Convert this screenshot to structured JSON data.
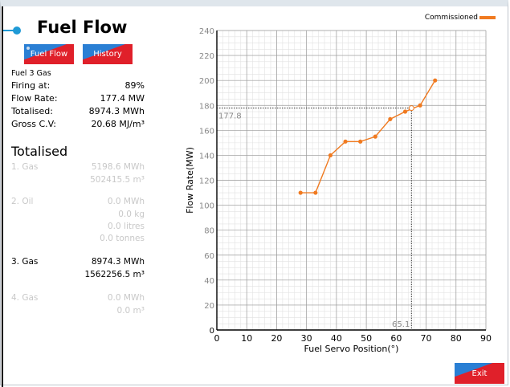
{
  "page": {
    "title": "Fuel Flow"
  },
  "buttons": {
    "fuel_flow": "Fuel Flow",
    "history": "History",
    "exit": "Exit"
  },
  "info": {
    "fuel": "Fuel 3 Gas",
    "rows": [
      {
        "label": "Firing at:",
        "value": "89%"
      },
      {
        "label": "Flow Rate:",
        "value": "177.4 MW"
      },
      {
        "label": "Totalised:",
        "value": "8974.3 MWh"
      },
      {
        "label": "Gross C.V:",
        "value": "20.68 MJ/m³"
      }
    ]
  },
  "totalised": {
    "heading": "Totalised",
    "groups": [
      {
        "name": "1. Gas",
        "active": false,
        "values": [
          "5198.6 MWh",
          "502415.5 m³"
        ]
      },
      {
        "name": "2. Oil",
        "active": false,
        "values": [
          "0.0 MWh",
          "0.0 kg",
          "0.0 litres",
          "0.0 tonnes"
        ]
      },
      {
        "name": "3. Gas",
        "active": true,
        "values": [
          "8974.3 MWh",
          "1562256.5 m³"
        ]
      },
      {
        "name": "4. Gas",
        "active": false,
        "values": [
          "0.0 MWh",
          "0.0 m³"
        ]
      }
    ]
  },
  "colors": {
    "accent": "#1f9ad6",
    "series": "#f07a20",
    "button_blue": "#2a7fd4",
    "button_red": "#e0202a"
  },
  "chart_data": {
    "type": "line",
    "xlabel": "Fuel Servo Position(°)",
    "ylabel": "Flow Rate(MW)",
    "xlim": [
      0,
      90
    ],
    "ylim": [
      0,
      240
    ],
    "xticks": [
      0,
      10,
      20,
      30,
      40,
      50,
      60,
      70,
      80,
      90
    ],
    "yticks": [
      0,
      20,
      40,
      60,
      80,
      100,
      120,
      140,
      160,
      180,
      200,
      220,
      240
    ],
    "grid": true,
    "legend": "top-right",
    "series": [
      {
        "name": "Commissioned",
        "x": [
          28,
          33,
          38,
          43,
          48,
          53,
          58,
          63,
          68,
          73
        ],
        "y": [
          110,
          110,
          140,
          151,
          151,
          155,
          169,
          175,
          180,
          200
        ]
      }
    ],
    "marker": {
      "x": 65.1,
      "y": 177.8,
      "x_label": "65.1",
      "y_label": "177.8"
    }
  }
}
